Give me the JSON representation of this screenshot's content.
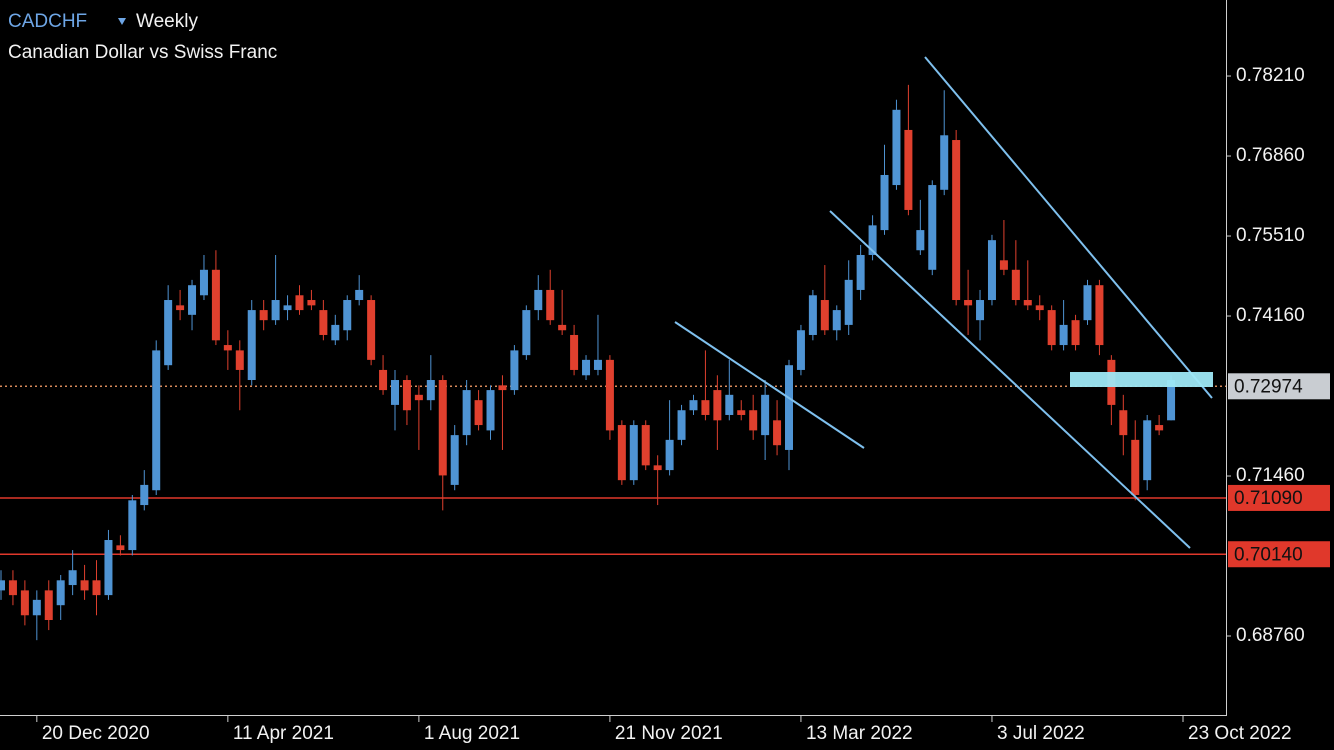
{
  "chart_data": {
    "type": "candlestick",
    "title": "CADCHF",
    "timeframe": "Weekly",
    "subtitle": "Canadian Dollar vs Swiss Franc",
    "up_color": "#4f94d4",
    "down_color": "#e0402e",
    "categories": [
      null,
      null,
      null,
      "20 Dec 2020",
      null,
      null,
      null,
      null,
      null,
      null,
      null,
      null,
      null,
      null,
      null,
      null,
      null,
      null,
      null,
      "11 Apr 2021",
      null,
      null,
      null,
      null,
      null,
      null,
      null,
      null,
      null,
      null,
      null,
      null,
      null,
      null,
      null,
      "1 Aug 2021",
      null,
      null,
      null,
      null,
      null,
      null,
      null,
      null,
      null,
      null,
      null,
      null,
      null,
      null,
      null,
      "21 Nov 2021",
      null,
      null,
      null,
      null,
      null,
      null,
      null,
      null,
      null,
      null,
      null,
      null,
      null,
      null,
      null,
      "13 Mar 2022",
      null,
      null,
      null,
      null,
      null,
      null,
      null,
      null,
      null,
      null,
      null,
      null,
      null,
      null,
      null,
      "3 Jul 2022",
      null,
      null,
      null,
      null,
      null,
      null,
      null,
      null,
      null,
      null,
      null,
      null,
      null,
      null,
      null,
      "23 Oct 2022"
    ],
    "open": [
      0.6953,
      0.697,
      0.6953,
      0.6911,
      0.6953,
      0.6928,
      0.6962,
      0.697,
      0.697,
      0.6945,
      0.7029,
      0.7021,
      0.7097,
      0.7122,
      0.7333,
      0.7434,
      0.7418,
      0.7451,
      0.7494,
      0.7367,
      0.7358,
      0.7308,
      0.7426,
      0.7409,
      0.7426,
      0.7451,
      0.7443,
      0.7426,
      0.7375,
      0.7392,
      0.7443,
      0.7443,
      0.7325,
      0.7266,
      0.7308,
      0.7283,
      0.7274,
      0.7308,
      0.7131,
      0.7215,
      0.7274,
      0.7223,
      0.7299,
      0.7291,
      0.735,
      0.7426,
      0.746,
      0.7401,
      0.7384,
      0.7316,
      0.7325,
      0.7342,
      0.7232,
      0.7139,
      0.7232,
      0.7164,
      0.7156,
      0.7207,
      0.7257,
      0.7274,
      0.7291,
      0.7249,
      0.7257,
      0.7257,
      0.7215,
      0.724,
      0.719,
      0.7325,
      0.7384,
      0.7443,
      0.7392,
      0.7401,
      0.746,
      0.7519,
      0.7561,
      0.7637,
      0.773,
      0.7527,
      0.7494,
      0.7629,
      0.7713,
      0.7443,
      0.7409,
      0.7443,
      0.751,
      0.7494,
      0.7443,
      0.7434,
      0.7426,
      0.7367,
      0.7409,
      0.7409,
      0.7468,
      0.7342,
      0.7257,
      0.7207,
      0.7139,
      0.7232,
      0.724,
      null
    ],
    "high": [
      0.6987,
      0.6987,
      0.697,
      0.6953,
      0.697,
      0.6979,
      0.7021,
      0.6996,
      0.7004,
      0.7055,
      0.7046,
      0.7114,
      0.7156,
      0.7375,
      0.7468,
      0.746,
      0.7477,
      0.7519,
      0.7527,
      0.7392,
      0.7375,
      0.7443,
      0.7443,
      0.7519,
      0.7451,
      0.7468,
      0.746,
      0.7443,
      0.7418,
      0.7451,
      0.7485,
      0.7451,
      0.735,
      0.7325,
      0.7316,
      0.7299,
      0.735,
      0.7316,
      0.7232,
      0.7308,
      0.7291,
      0.7299,
      0.7316,
      0.7367,
      0.7434,
      0.7485,
      0.7494,
      0.746,
      0.7401,
      0.735,
      0.7418,
      0.735,
      0.724,
      0.724,
      0.724,
      0.7181,
      0.7274,
      0.7266,
      0.7283,
      0.7358,
      0.7316,
      0.7342,
      0.7274,
      0.7283,
      0.7308,
      0.7274,
      0.7342,
      0.7401,
      0.746,
      0.7502,
      0.7434,
      0.751,
      0.7536,
      0.7586,
      0.7705,
      0.7781,
      0.7806,
      0.7612,
      0.7645,
      0.7797,
      0.773,
      0.7494,
      0.746,
      0.7553,
      0.7578,
      0.7544,
      0.751,
      0.7451,
      0.7434,
      0.7443,
      0.7418,
      0.7477,
      0.7477,
      0.735,
      0.7283,
      0.724,
      0.7249,
      0.7249,
      0.7316,
      null
    ],
    "low": [
      0.6937,
      0.6928,
      0.6894,
      0.6869,
      0.6886,
      0.6903,
      0.6945,
      0.6937,
      0.6911,
      0.6937,
      0.7012,
      0.7012,
      0.7088,
      0.7114,
      0.7325,
      0.7409,
      0.7392,
      0.7443,
      0.7367,
      0.7325,
      0.7257,
      0.7299,
      0.7392,
      0.7401,
      0.7409,
      0.7418,
      0.7426,
      0.7375,
      0.7367,
      0.7375,
      0.7434,
      0.7333,
      0.7283,
      0.7223,
      0.7232,
      0.719,
      0.7257,
      0.7088,
      0.7122,
      0.7198,
      0.7223,
      0.7207,
      0.719,
      0.7283,
      0.7342,
      0.7409,
      0.7401,
      0.7384,
      0.7316,
      0.7308,
      0.7316,
      0.7207,
      0.7131,
      0.7131,
      0.7156,
      0.7097,
      0.7147,
      0.7198,
      0.7249,
      0.724,
      0.719,
      0.724,
      0.724,
      0.7207,
      0.7173,
      0.7181,
      0.7156,
      0.7316,
      0.7375,
      0.7384,
      0.7375,
      0.7384,
      0.7443,
      0.751,
      0.7553,
      0.7629,
      0.7586,
      0.7519,
      0.7485,
      0.762,
      0.7434,
      0.7384,
      0.7375,
      0.7434,
      0.7485,
      0.7434,
      0.7426,
      0.7409,
      0.7358,
      0.7358,
      0.7358,
      0.7401,
      0.735,
      0.7232,
      0.7181,
      0.7105,
      0.7122,
      0.7215,
      0.724,
      null
    ],
    "close": [
      0.697,
      0.6945,
      0.6911,
      0.6937,
      0.6903,
      0.697,
      0.6987,
      0.6953,
      0.6945,
      0.7038,
      0.7021,
      0.7105,
      0.7131,
      0.7358,
      0.7443,
      0.7426,
      0.7468,
      0.7494,
      0.7375,
      0.7358,
      0.7325,
      0.7426,
      0.7409,
      0.7443,
      0.7434,
      0.7426,
      0.7434,
      0.7384,
      0.7401,
      0.7443,
      0.746,
      0.7342,
      0.7291,
      0.7308,
      0.7257,
      0.7274,
      0.7308,
      0.7147,
      0.7215,
      0.7291,
      0.7232,
      0.7291,
      0.7291,
      0.7358,
      0.7426,
      0.746,
      0.7409,
      0.7392,
      0.7325,
      0.7342,
      0.7342,
      0.7223,
      0.7139,
      0.7232,
      0.7164,
      0.7156,
      0.7207,
      0.7257,
      0.7274,
      0.7249,
      0.724,
      0.7283,
      0.7249,
      0.7223,
      0.7283,
      0.7198,
      0.7333,
      0.7392,
      0.7451,
      0.7392,
      0.7426,
      0.7477,
      0.7519,
      0.7569,
      0.7654,
      0.7764,
      0.7595,
      0.7561,
      0.7637,
      0.7721,
      0.7443,
      0.7434,
      0.7443,
      0.7544,
      0.7494,
      0.7443,
      0.7434,
      0.7426,
      0.7367,
      0.7401,
      0.7367,
      0.7468,
      0.7367,
      0.7266,
      0.7215,
      0.7114,
      0.724,
      0.7223,
      0.7308,
      null
    ],
    "ylim": [
      0.67427,
      0.79493
    ],
    "yticks": [
      {
        "value": 0.7821,
        "label": "0.78210"
      },
      {
        "value": 0.7686,
        "label": "0.76860"
      },
      {
        "value": 0.7551,
        "label": "0.75510"
      },
      {
        "value": 0.7416,
        "label": "0.74160"
      },
      {
        "value": 0.7146,
        "label": "0.71460"
      },
      {
        "value": 0.6876,
        "label": "0.68760"
      }
    ],
    "levels": [
      {
        "value": 0.7109,
        "label": "0.71090",
        "color": "#e0382b"
      },
      {
        "value": 0.7014,
        "label": "0.70140",
        "color": "#e0382b"
      }
    ],
    "current_price": {
      "value": 0.72974,
      "label": "0.72974",
      "color": "#d98a5a"
    }
  }
}
